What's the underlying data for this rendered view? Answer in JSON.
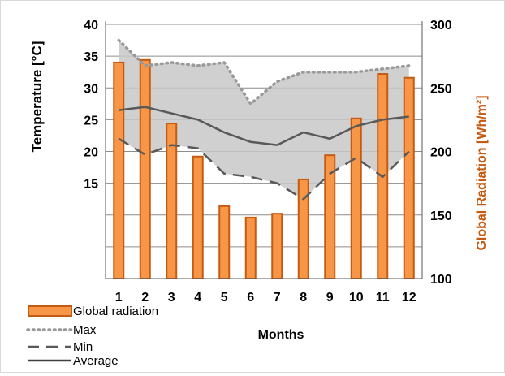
{
  "chart_data": {
    "type": "bar",
    "categories": [
      "1",
      "2",
      "3",
      "4",
      "5",
      "6",
      "7",
      "8",
      "9",
      "10",
      "11",
      "12"
    ],
    "xlabel": "Months",
    "ylabel_left": "Temperature [°C]",
    "ylabel_right": "Global Radiation [Wh/m²]",
    "left_axis": {
      "ylim": [
        0,
        40
      ],
      "ticks": [
        15,
        20,
        25,
        30,
        35,
        40
      ]
    },
    "right_axis": {
      "ylim": [
        100,
        300
      ],
      "ticks": [
        100,
        150,
        200,
        250,
        300
      ]
    },
    "grid": true,
    "legend_placement": "bottom-left",
    "series": [
      {
        "name": "Global radiation",
        "type": "bar",
        "axis": "right",
        "color": "#f79646",
        "edge_color": "#c55a11",
        "values": [
          270,
          272,
          222,
          196,
          157,
          148,
          151,
          178,
          197,
          226,
          261,
          258
        ]
      },
      {
        "name": "Max",
        "type": "line",
        "axis": "left",
        "style": "dotted",
        "color": "#999999",
        "values": [
          37.5,
          33.5,
          34,
          33.5,
          34,
          27.5,
          31,
          32.5,
          32.5,
          32.5,
          33,
          33.5
        ]
      },
      {
        "name": "Min",
        "type": "line",
        "axis": "left",
        "style": "dashed",
        "color": "#595959",
        "values": [
          22,
          19.5,
          21,
          20.5,
          16.5,
          16,
          15,
          12.5,
          16.5,
          19,
          16,
          20
        ]
      },
      {
        "name": "Average",
        "type": "line",
        "axis": "left",
        "style": "solid",
        "color": "#595959",
        "values": [
          26.5,
          27,
          26,
          25,
          23,
          21.5,
          21,
          23,
          22,
          24,
          25,
          25.5
        ]
      }
    ],
    "band": {
      "between": [
        "Min",
        "Max"
      ],
      "color": "#c8c8c8"
    }
  }
}
